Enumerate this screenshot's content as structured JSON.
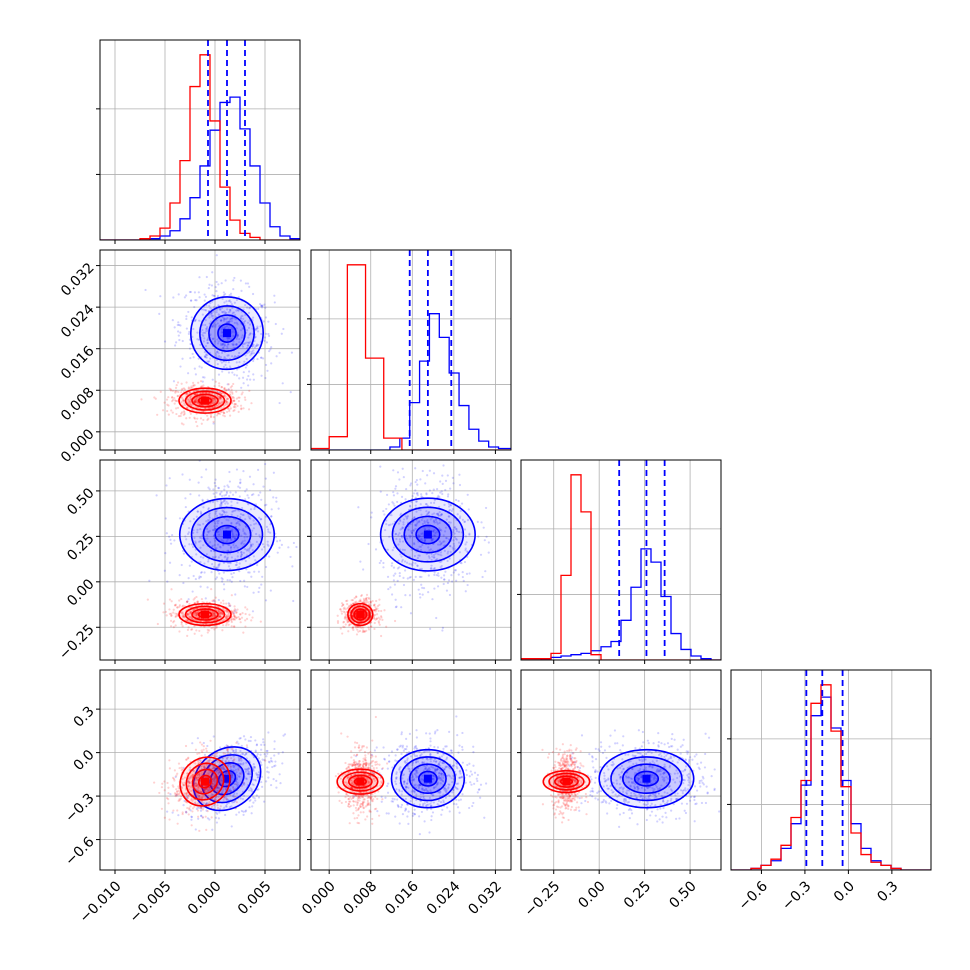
{
  "chart_data": {
    "type": "corner",
    "parameters": [
      {
        "ticks": [
          "−0.010",
          "−0.005",
          "0.000",
          "0.005"
        ],
        "tick_values": [
          -0.01,
          -0.005,
          0.0,
          0.005
        ],
        "range": [
          -0.0115,
          0.0085
        ]
      },
      {
        "ticks": [
          "0.000",
          "0.008",
          "0.016",
          "0.024",
          "0.032"
        ],
        "tick_values": [
          0.0,
          0.008,
          0.016,
          0.024,
          0.032
        ],
        "range": [
          -0.0035,
          0.035
        ]
      },
      {
        "ticks": [
          "−0.25",
          "0.00",
          "0.25",
          "0.50"
        ],
        "tick_values": [
          -0.25,
          0.0,
          0.25,
          0.5
        ],
        "range": [
          -0.43,
          0.67
        ]
      },
      {
        "ticks": [
          "−0.6",
          "−0.3",
          "0.0",
          "0.3"
        ],
        "tick_values": [
          -0.6,
          -0.3,
          0.0,
          0.3
        ],
        "range": [
          -0.81,
          0.57
        ]
      }
    ],
    "series": [
      {
        "color": "#ff0000",
        "means": [
          -0.001,
          0.006,
          -0.18,
          -0.2
        ],
        "sds": [
          0.0013,
          0.0012,
          0.03,
          0.08
        ],
        "corr": [
          [
            0,
            0,
            0,
            0.3
          ],
          [
            0,
            0,
            0,
            0
          ],
          [
            0,
            0,
            0,
            0
          ],
          [
            0.3,
            0,
            0,
            0
          ]
        ],
        "histograms": [
          {
            "edges": [
              -0.0115,
              -0.0105,
              -0.0095,
              -0.0085,
              -0.0075,
              -0.0065,
              -0.0055,
              -0.0045,
              -0.0035,
              -0.0025,
              -0.0015,
              -0.0005,
              0.0005,
              0.0015,
              0.0025,
              0.0035,
              0.0045,
              0.0055,
              0.0065,
              0.0075,
              0.0085
            ],
            "counts": [
              0,
              0,
              0,
              0,
              1,
              3,
              9,
              28,
              60,
              116,
              140,
              90,
              40,
              15,
              5,
              2,
              0,
              0,
              0,
              0
            ]
          },
          {
            "edges": [
              -0.0035,
              0.0,
              0.0035,
              0.007,
              0.0105,
              0.014,
              0.0175,
              0.021,
              0.0245,
              0.028,
              0.0315,
              0.035
            ],
            "counts": [
              1,
              9,
              125,
              62,
              8,
              0,
              0,
              0,
              0,
              0,
              0
            ]
          },
          {
            "edges": [
              -0.43,
              -0.375,
              -0.32,
              -0.265,
              -0.21,
              -0.155,
              -0.1,
              -0.045,
              0.01,
              0.065,
              0.12,
              0.175,
              0.23,
              0.285,
              0.34,
              0.395,
              0.45,
              0.505,
              0.56,
              0.615,
              0.67
            ],
            "counts": [
              1,
              1,
              1,
              5,
              64,
              140,
              112,
              4,
              0,
              0,
              0,
              0,
              0,
              0,
              0,
              0,
              0,
              0,
              0,
              0
            ]
          },
          {
            "edges": [
              -0.81,
              -0.741,
              -0.672,
              -0.603,
              -0.534,
              -0.465,
              -0.396,
              -0.327,
              -0.258,
              -0.189,
              -0.12,
              -0.051,
              0.018,
              0.087,
              0.156,
              0.225,
              0.294,
              0.363,
              0.432,
              0.501,
              0.57
            ],
            "counts": [
              0,
              0,
              1,
              3,
              7,
              16,
              34,
              58,
              108,
              120,
              90,
              54,
              24,
              10,
              5,
              3,
              1,
              0,
              0,
              0
            ]
          }
        ]
      },
      {
        "color": "#0000ff",
        "means": [
          0.0012,
          0.019,
          0.26,
          -0.18
        ],
        "sds": [
          0.0018,
          0.0035,
          0.13,
          0.1
        ],
        "corr": [
          [
            0,
            -0.2,
            0,
            0.45
          ],
          [
            -0.2,
            0,
            0,
            0
          ],
          [
            0,
            0,
            0,
            0
          ],
          [
            0.45,
            0,
            0,
            0
          ]
        ],
        "histograms": [
          {
            "edges": [
              -0.0115,
              -0.0105,
              -0.0095,
              -0.0085,
              -0.0075,
              -0.0065,
              -0.0055,
              -0.0045,
              -0.0035,
              -0.0025,
              -0.0015,
              -0.0005,
              0.0005,
              0.0015,
              0.0025,
              0.0035,
              0.0045,
              0.0055,
              0.0065,
              0.0075,
              0.0085
            ],
            "counts": [
              0,
              0,
              0,
              0,
              0,
              1,
              3,
              7,
              16,
              32,
              56,
              83,
              104,
              108,
              84,
              56,
              28,
              10,
              3,
              1
            ]
          },
          {
            "edges": [
              -0.0035,
              -0.0016,
              0.0003,
              0.0022,
              0.0041,
              0.006,
              0.0079,
              0.0098,
              0.0117,
              0.0136,
              0.0155,
              0.0174,
              0.0193,
              0.0212,
              0.0231,
              0.025,
              0.0269,
              0.0288,
              0.0307,
              0.0326,
              0.035
            ],
            "counts": [
              0,
              0,
              0,
              0,
              0,
              0,
              0,
              0,
              2,
              8,
              32,
              60,
              92,
              76,
              52,
              30,
              14,
              6,
              2,
              1
            ]
          },
          {
            "edges": [
              -0.43,
              -0.375,
              -0.32,
              -0.265,
              -0.21,
              -0.155,
              -0.1,
              -0.045,
              0.01,
              0.065,
              0.12,
              0.175,
              0.23,
              0.285,
              0.34,
              0.395,
              0.45,
              0.505,
              0.56,
              0.615,
              0.67
            ],
            "counts": [
              0,
              0,
              1,
              2,
              3,
              4,
              5,
              7,
              10,
              14,
              30,
              55,
              84,
              74,
              48,
              20,
              8,
              3,
              1,
              0
            ]
          },
          {
            "edges": [
              -0.81,
              -0.741,
              -0.672,
              -0.603,
              -0.534,
              -0.465,
              -0.396,
              -0.327,
              -0.258,
              -0.189,
              -0.12,
              -0.051,
              0.018,
              0.087,
              0.156,
              0.225,
              0.294,
              0.363,
              0.432,
              0.501,
              0.57
            ],
            "counts": [
              0,
              0,
              1,
              3,
              6,
              14,
              30,
              55,
              100,
              112,
              92,
              58,
              30,
              14,
              6,
              3,
              1,
              0,
              0,
              0
            ]
          }
        ]
      }
    ],
    "quantile_lines": {
      "color": "#0000ff",
      "values": [
        [
          -0.0007,
          0.0012,
          0.003
        ],
        [
          0.0155,
          0.019,
          0.0235
        ],
        [
          0.11,
          0.26,
          0.36
        ],
        [
          -0.29,
          -0.18,
          -0.04
        ]
      ]
    },
    "grid": true,
    "legend": "none"
  }
}
